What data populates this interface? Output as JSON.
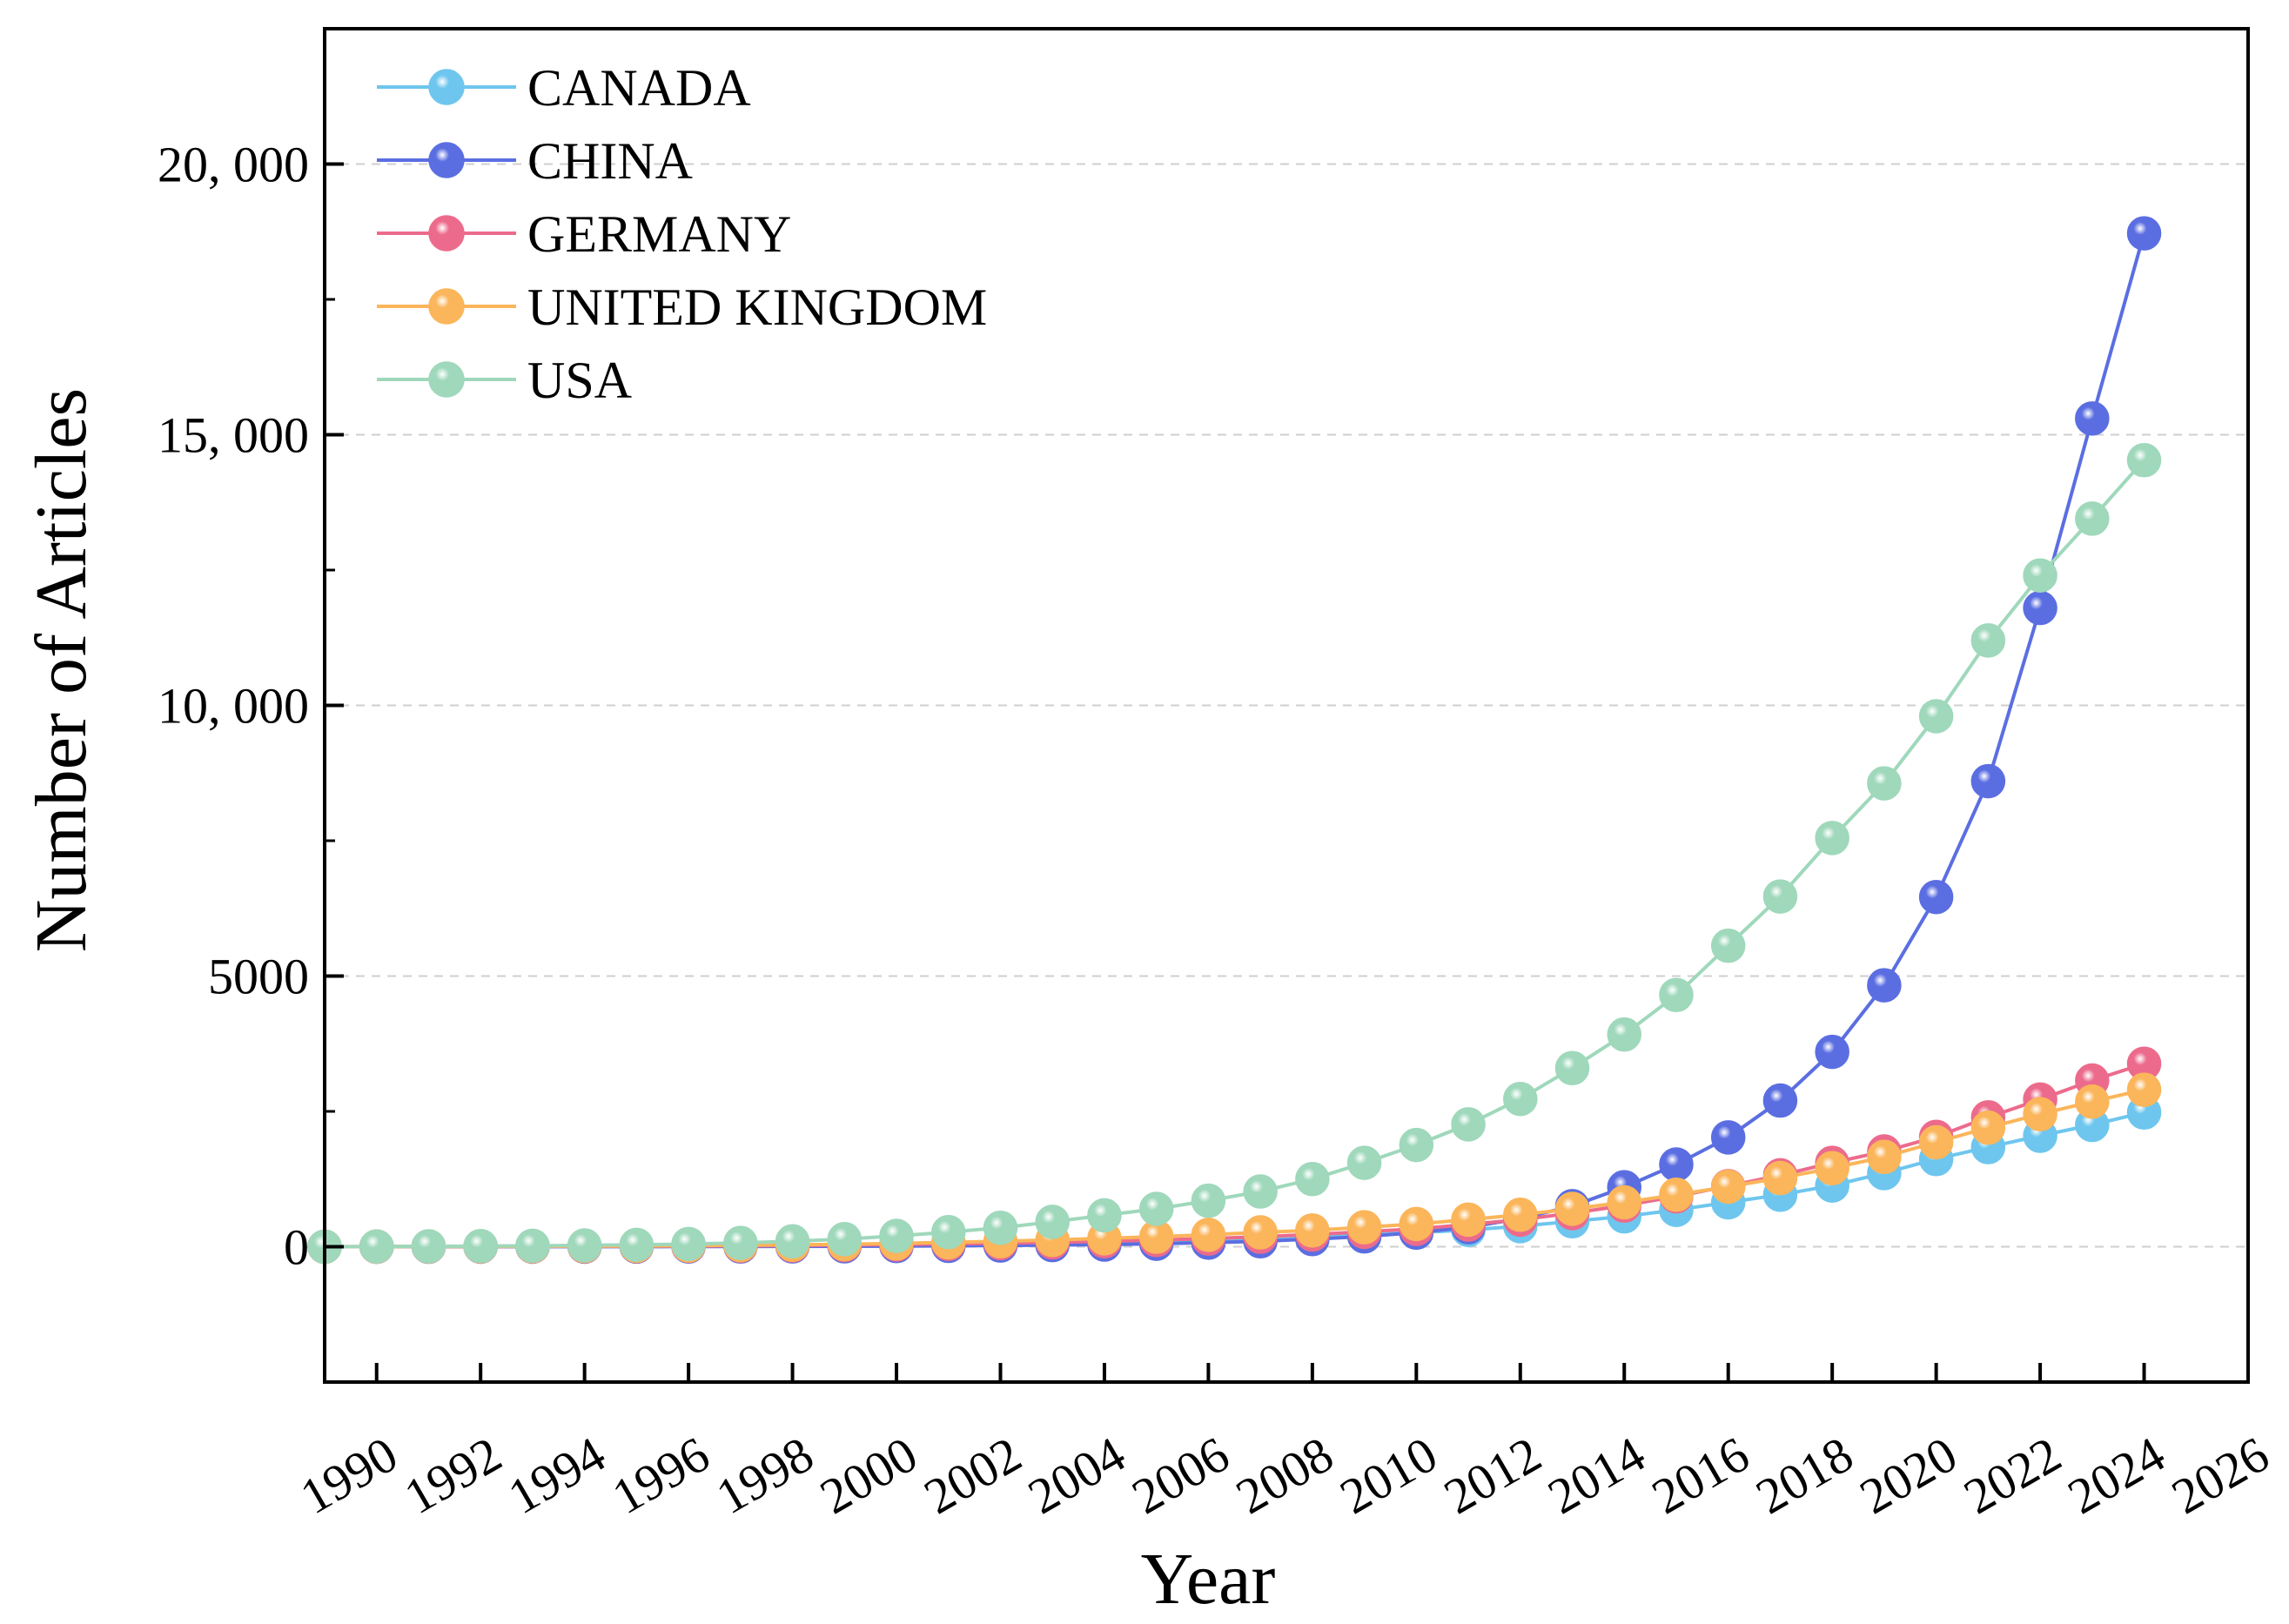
{
  "chart_data": {
    "type": "line",
    "title": "",
    "xlabel": "Year",
    "ylabel": "Number of Articles",
    "xlim": [
      1989,
      2026
    ],
    "ylim": [
      -2500,
      22500
    ],
    "x_ticks": [
      1990,
      1992,
      1994,
      1996,
      1998,
      2000,
      2002,
      2004,
      2006,
      2008,
      2010,
      2012,
      2014,
      2016,
      2018,
      2020,
      2022,
      2024,
      2026
    ],
    "x_tick_labels": [
      "1990",
      "1992",
      "1994",
      "1996",
      "1998",
      "2000",
      "2002",
      "2004",
      "2006",
      "2008",
      "2010",
      "2012",
      "2014",
      "2016",
      "2018",
      "2020",
      "2022",
      "2024",
      "2026"
    ],
    "y_ticks": [
      0,
      5000,
      10000,
      15000,
      20000
    ],
    "y_tick_labels": [
      "0",
      "5000",
      "10, 000",
      "15, 000",
      "20, 000"
    ],
    "y_minor_ticks": [
      -2500,
      2500,
      7500,
      12500,
      17500,
      22500
    ],
    "grid": "horizontal dashed",
    "legend_position": "top-left",
    "x": [
      1989,
      1990,
      1991,
      1992,
      1993,
      1994,
      1995,
      1996,
      1997,
      1998,
      1999,
      2000,
      2001,
      2002,
      2003,
      2004,
      2005,
      2006,
      2007,
      2008,
      2009,
      2010,
      2011,
      2012,
      2013,
      2014,
      2015,
      2016,
      2017,
      2018,
      2019,
      2020,
      2021,
      2022,
      2023,
      2024
    ],
    "series": [
      {
        "name": "CANADA",
        "color": "#6ec6ee",
        "values": [
          0,
          2,
          3,
          4,
          5,
          6,
          8,
          10,
          13,
          17,
          22,
          30,
          40,
          50,
          60,
          75,
          95,
          120,
          150,
          180,
          220,
          260,
          310,
          380,
          470,
          560,
          680,
          820,
          960,
          1130,
          1360,
          1620,
          1840,
          2050,
          2250,
          2480
        ]
      },
      {
        "name": "CHINA",
        "color": "#5b6ee1",
        "values": [
          0,
          0,
          0,
          1,
          1,
          1,
          2,
          3,
          4,
          6,
          8,
          12,
          16,
          22,
          30,
          40,
          55,
          75,
          100,
          140,
          190,
          260,
          360,
          520,
          750,
          1100,
          1520,
          2020,
          2700,
          3600,
          4830,
          6460,
          8600,
          11800,
          15300,
          18720
        ]
      },
      {
        "name": "GERMANY",
        "color": "#ec6b8c",
        "values": [
          0,
          2,
          3,
          5,
          6,
          8,
          10,
          13,
          17,
          22,
          30,
          40,
          52,
          65,
          80,
          100,
          125,
          150,
          185,
          225,
          275,
          330,
          410,
          500,
          620,
          760,
          930,
          1120,
          1320,
          1550,
          1760,
          2030,
          2390,
          2720,
          3070,
          3380
        ]
      },
      {
        "name": "UNITED KINGDOM",
        "color": "#fbb55a",
        "values": [
          0,
          2,
          4,
          6,
          8,
          11,
          15,
          20,
          27,
          35,
          45,
          60,
          80,
          100,
          125,
          155,
          185,
          220,
          265,
          300,
          360,
          420,
          500,
          590,
          700,
          820,
          960,
          1110,
          1270,
          1450,
          1660,
          1930,
          2200,
          2450,
          2680,
          2900
        ]
      },
      {
        "name": "USA",
        "color": "#9fd8bb",
        "values": [
          0,
          5,
          8,
          12,
          18,
          25,
          35,
          50,
          70,
          100,
          140,
          200,
          270,
          350,
          460,
          580,
          700,
          850,
          1020,
          1250,
          1550,
          1880,
          2260,
          2730,
          3300,
          3920,
          4650,
          5560,
          6470,
          7550,
          8560,
          9800,
          11200,
          12400,
          13450,
          14530
        ]
      }
    ]
  }
}
